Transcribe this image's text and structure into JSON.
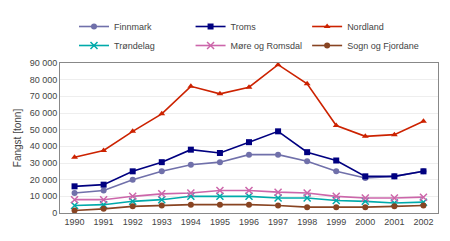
{
  "chart_data": {
    "type": "line",
    "x": [
      1990,
      1991,
      1992,
      1993,
      1994,
      1995,
      1996,
      1997,
      1998,
      1999,
      2000,
      2001,
      2002
    ],
    "series": [
      {
        "name": "Finnmark",
        "color": "#7070aa",
        "marker": "circle",
        "values": [
          12000,
          13500,
          20000,
          25000,
          29000,
          30500,
          35000,
          35000,
          31000,
          25000,
          21000,
          22000,
          25000
        ]
      },
      {
        "name": "Troms",
        "color": "#000080",
        "marker": "square",
        "values": [
          16000,
          17000,
          25000,
          30500,
          38000,
          36000,
          42500,
          49000,
          36500,
          31500,
          22000,
          22000,
          25000
        ]
      },
      {
        "name": "Nordland",
        "color": "#cc2200",
        "marker": "triangle",
        "values": [
          33500,
          37500,
          49000,
          59500,
          76000,
          71500,
          75500,
          89000,
          77500,
          52500,
          46000,
          47000,
          55000
        ]
      },
      {
        "name": "Trøndelag",
        "color": "#00aaaa",
        "marker": "x",
        "values": [
          4500,
          5000,
          7000,
          8000,
          10000,
          10000,
          10000,
          9000,
          9000,
          7500,
          7000,
          6000,
          6500
        ]
      },
      {
        "name": "Møre og Romsdal",
        "color": "#cc66aa",
        "marker": "x",
        "values": [
          8000,
          8000,
          10000,
          11500,
          12000,
          13500,
          13500,
          12500,
          12000,
          10000,
          9000,
          9000,
          9500
        ]
      },
      {
        "name": "Sogn og Fjordane",
        "color": "#884422",
        "marker": "circle",
        "values": [
          1500,
          2500,
          4000,
          4500,
          5000,
          5000,
          5000,
          4500,
          3500,
          3500,
          3500,
          4000,
          4500
        ]
      }
    ],
    "xlim": [
      1989.5,
      2002.5
    ],
    "xticks": [
      1990,
      1991,
      1992,
      1993,
      1994,
      1995,
      1996,
      1997,
      1998,
      1999,
      2000,
      2001,
      2002
    ],
    "ylim": [
      0,
      90000
    ],
    "yticks": [
      0,
      {
        "value": 10000,
        "label": "10 000"
      },
      {
        "value": 20000,
        "label": "20 000"
      },
      {
        "value": 30000,
        "label": "30 000"
      },
      {
        "value": 40000,
        "label": "40 000"
      },
      {
        "value": 50000,
        "label": "50 000"
      },
      {
        "value": 60000,
        "label": "60 000"
      },
      {
        "value": 70000,
        "label": "70 000"
      },
      {
        "value": 80000,
        "label": "80 000"
      },
      {
        "value": 90000,
        "label": "90 000"
      }
    ],
    "ylabel": "Fangst [tonn]",
    "grid": true,
    "legend": "top"
  }
}
